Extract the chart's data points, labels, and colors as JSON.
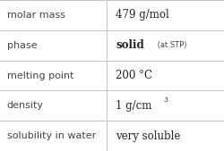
{
  "rows": [
    {
      "label": "molar mass",
      "value": "479 g/mol",
      "superscript": null,
      "small_suffix": null,
      "value_bold": false
    },
    {
      "label": "phase",
      "value": "solid",
      "superscript": null,
      "small_suffix": " (at STP)",
      "value_bold": true
    },
    {
      "label": "melting point",
      "value": "200 °C",
      "superscript": null,
      "small_suffix": null,
      "value_bold": false
    },
    {
      "label": "density",
      "value": "1 g/cm",
      "superscript": "3",
      "small_suffix": null,
      "value_bold": false
    },
    {
      "label": "solubility in water",
      "value": "very soluble",
      "superscript": null,
      "small_suffix": null,
      "value_bold": false
    }
  ],
  "col_split": 0.475,
  "background_color": "#ffffff",
  "line_color": "#bbbbbb",
  "label_fontsize": 8.0,
  "value_fontsize": 8.5,
  "small_fontsize": 6.0,
  "super_fontsize": 5.5,
  "label_color": "#444444",
  "value_color": "#222222",
  "label_font": "DejaVu Sans",
  "value_font": "DejaVu Serif"
}
